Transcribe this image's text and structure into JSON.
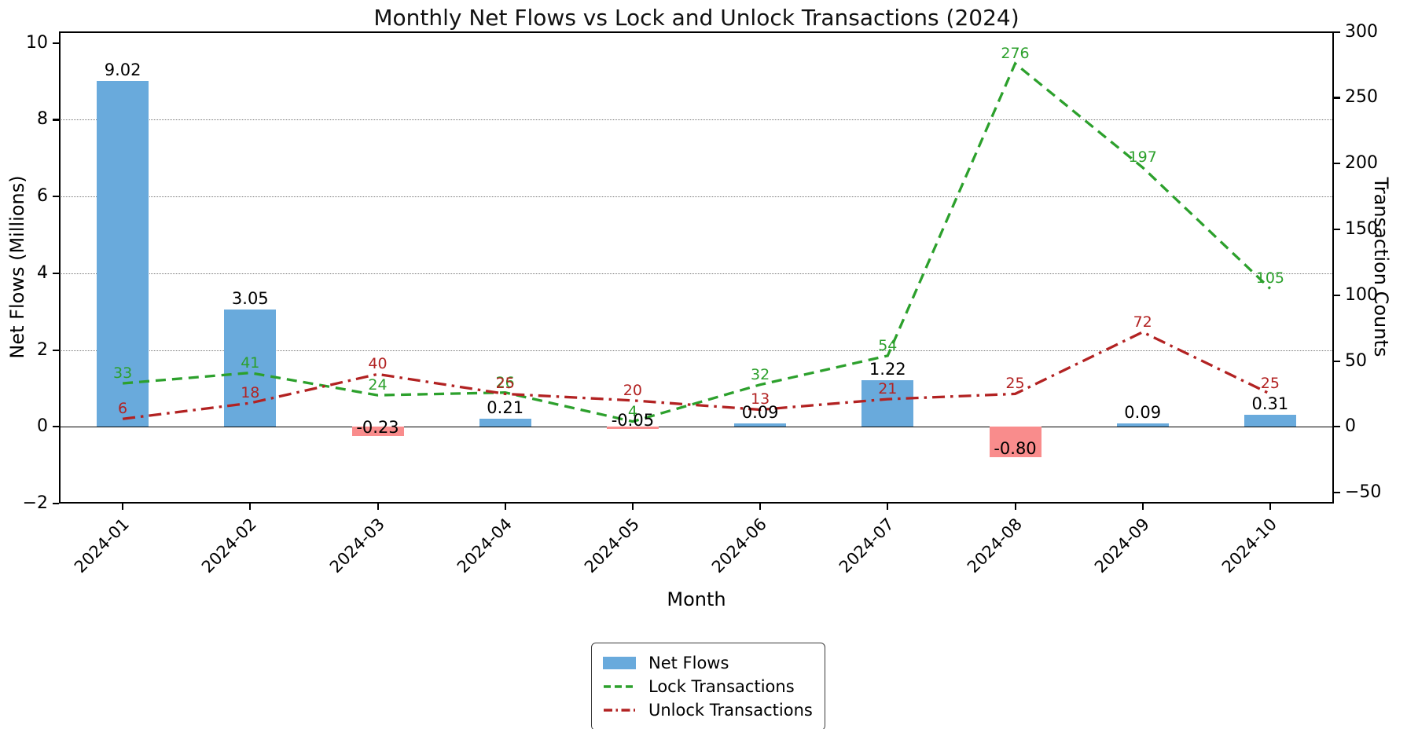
{
  "chart_data": {
    "type": "bar",
    "title": "Monthly Net Flows vs Lock and Unlock Transactions (2024)",
    "xlabel": "Month",
    "ylabel_left": "Net Flows (Millions)",
    "ylabel_right": "Transaction Counts",
    "categories": [
      "2024-01",
      "2024-02",
      "2024-03",
      "2024-04",
      "2024-05",
      "2024-06",
      "2024-07",
      "2024-08",
      "2024-09",
      "2024-10"
    ],
    "series": [
      {
        "name": "Net Flows",
        "kind": "bar",
        "axis": "left",
        "values": [
          9.02,
          3.05,
          -0.23,
          0.21,
          -0.05,
          0.09,
          1.22,
          -0.8,
          0.09,
          0.31
        ],
        "labels": [
          "9.02",
          "3.05",
          "-0.23",
          "0.21",
          "-0.05",
          "0.09",
          "1.22",
          "-0.80",
          "0.09",
          "0.31"
        ],
        "color_positive": "#69AADC",
        "color_negative": "#F98C8C"
      },
      {
        "name": "Lock Transactions",
        "kind": "line",
        "style": "dashed",
        "axis": "right",
        "values": [
          33,
          41,
          24,
          26,
          4,
          32,
          54,
          276,
          197,
          105
        ],
        "labels": [
          "33",
          "41",
          "24",
          "26",
          "4",
          "32",
          "54",
          "276",
          "197",
          "105"
        ],
        "color": "#2ca02c"
      },
      {
        "name": "Unlock Transactions",
        "kind": "line",
        "style": "dashdot",
        "axis": "right",
        "values": [
          6,
          18,
          40,
          25,
          20,
          13,
          21,
          25,
          72,
          25
        ],
        "labels": [
          "6",
          "18",
          "40",
          "25",
          "20",
          "13",
          "21",
          "25",
          "72",
          "25"
        ],
        "color": "#b22222"
      }
    ],
    "ylim_left": [
      -2,
      10.3
    ],
    "yticks_left": [
      {
        "v": -2,
        "label": "−2"
      },
      {
        "v": 0,
        "label": "0"
      },
      {
        "v": 2,
        "label": "2"
      },
      {
        "v": 4,
        "label": "4"
      },
      {
        "v": 6,
        "label": "6"
      },
      {
        "v": 8,
        "label": "8"
      },
      {
        "v": 10,
        "label": "10"
      }
    ],
    "yticks_right": [
      {
        "v": -50,
        "label": "−50"
      },
      {
        "v": 0,
        "label": "0"
      },
      {
        "v": 50,
        "label": "50"
      },
      {
        "v": 100,
        "label": "100"
      },
      {
        "v": 150,
        "label": "150"
      },
      {
        "v": 200,
        "label": "200"
      },
      {
        "v": 250,
        "label": "250"
      },
      {
        "v": 300,
        "label": "300"
      }
    ],
    "grid": "horizontal dotted at left-axis ticks 2,4,6,8; solid line at 0",
    "legend_position": "below chart, centered"
  }
}
